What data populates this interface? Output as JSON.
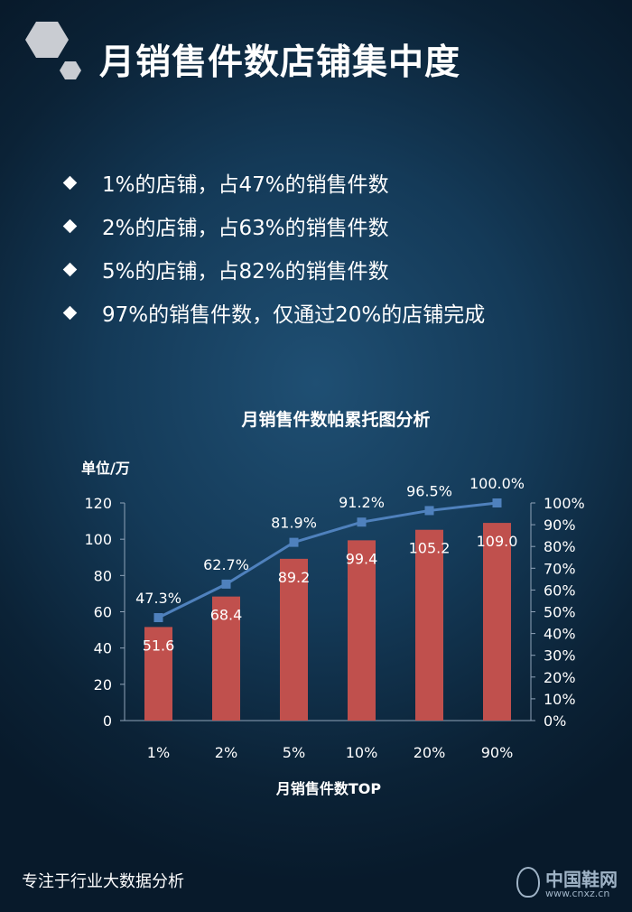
{
  "header": {
    "title": "月销售件数店铺集中度"
  },
  "bullets": [
    "1%的店铺，占47%的销售件数",
    "2%的店铺，占63%的销售件数",
    "5%的店铺，占82%的销售件数",
    "97%的销售件数，仅通过20%的店铺完成"
  ],
  "chart_data": {
    "type": "bar",
    "title": "月销售件数帕累托图分析",
    "y_unit_label": "单位/万",
    "xlabel": "月销售件数TOP",
    "categories": [
      "1%",
      "2%",
      "5%",
      "10%",
      "20%",
      "90%"
    ],
    "series": [
      {
        "type": "bar",
        "axis": "left",
        "values": [
          51.6,
          68.4,
          89.2,
          99.4,
          105.2,
          109.0
        ],
        "labels": [
          "51.6",
          "68.4",
          "89.2",
          "99.4",
          "105.2",
          "109.0"
        ]
      },
      {
        "type": "line",
        "axis": "right",
        "values": [
          47.3,
          62.7,
          81.9,
          91.2,
          96.5,
          100.0
        ],
        "labels": [
          "47.3%",
          "62.7%",
          "81.9%",
          "91.2%",
          "96.5%",
          "100.0%"
        ]
      }
    ],
    "ylim": [
      0,
      120
    ],
    "yticks": [
      "0",
      "20",
      "40",
      "60",
      "80",
      "100",
      "120"
    ],
    "y2lim": [
      0,
      100
    ],
    "y2ticks": [
      "0%",
      "10%",
      "20%",
      "30%",
      "40%",
      "50%",
      "60%",
      "70%",
      "80%",
      "90%",
      "100%"
    ],
    "grid": false,
    "colors": {
      "bar": "#c0504d",
      "line": "#4f81bd"
    }
  },
  "footer": {
    "text": "专注于行业大数据分析"
  },
  "watermark": {
    "text": "中国鞋网",
    "url": "www.cnxz.cn"
  }
}
